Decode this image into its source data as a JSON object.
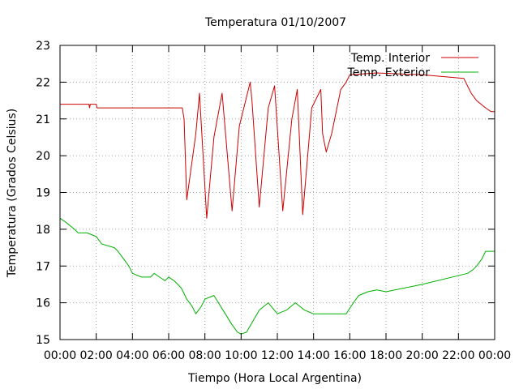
{
  "chart_data": {
    "type": "line",
    "title": "Temperatura 01/10/2007",
    "xlabel": "Tiempo (Hora Local Argentina)",
    "ylabel": "Temperatura (Grados Celsius)",
    "xlim": [
      0,
      24
    ],
    "ylim": [
      15,
      23
    ],
    "x_ticks": [
      0,
      2,
      4,
      6,
      8,
      10,
      12,
      14,
      16,
      18,
      20,
      22,
      24
    ],
    "x_tick_labels": [
      "00:00",
      "02:00",
      "04:00",
      "06:00",
      "08:00",
      "10:00",
      "12:00",
      "14:00",
      "16:00",
      "18:00",
      "20:00",
      "22:00",
      "00:00"
    ],
    "y_ticks": [
      15,
      16,
      17,
      18,
      19,
      20,
      21,
      22,
      23
    ],
    "y_tick_labels": [
      "15",
      "16",
      "17",
      "18",
      "19",
      "20",
      "21",
      "22",
      "23"
    ],
    "grid": true,
    "legend_position": "top-right",
    "series": [
      {
        "name": "Temp. Interior",
        "color": "#cc0000",
        "x": [
          0,
          1.6,
          1.63,
          1.67,
          1.7,
          2.0,
          2.05,
          6.75,
          6.85,
          7.0,
          7.5,
          7.7,
          8.1,
          8.5,
          8.95,
          9.5,
          9.9,
          10.5,
          10.6,
          11.0,
          11.5,
          11.85,
          12.3,
          12.8,
          13.1,
          13.4,
          13.9,
          14.4,
          14.5,
          14.7,
          15.0,
          15.5,
          15.8,
          16.0,
          17.5,
          20.0,
          22.3,
          22.7,
          23.0,
          23.5,
          23.8,
          24.0
        ],
        "y": [
          21.4,
          21.4,
          21.3,
          21.4,
          21.4,
          21.4,
          21.3,
          21.3,
          21.0,
          18.8,
          20.6,
          21.7,
          18.3,
          20.5,
          21.7,
          18.5,
          20.8,
          22.0,
          21.5,
          18.6,
          21.3,
          21.9,
          18.5,
          21.0,
          21.8,
          18.4,
          21.3,
          21.8,
          20.6,
          20.1,
          20.6,
          21.8,
          22.0,
          22.2,
          22.25,
          22.2,
          22.1,
          21.7,
          21.5,
          21.3,
          21.2,
          21.2
        ]
      },
      {
        "name": "Temp. Exterior",
        "color": "#00b000",
        "x": [
          0,
          0.3,
          0.8,
          1.0,
          1.5,
          2.0,
          2.3,
          3.0,
          3.2,
          3.5,
          3.8,
          4.0,
          4.5,
          5.0,
          5.2,
          5.5,
          5.8,
          6.0,
          6.3,
          6.5,
          6.7,
          7.0,
          7.3,
          7.5,
          7.8,
          8.0,
          8.5,
          9.0,
          9.5,
          9.8,
          10.0,
          10.3,
          11.0,
          11.5,
          12.0,
          12.5,
          13.0,
          13.5,
          14.0,
          15.0,
          15.8,
          16.2,
          16.5,
          17.0,
          17.5,
          18.0,
          20.0,
          22.5,
          22.8,
          23.0,
          23.3,
          23.5,
          24.0
        ],
        "y": [
          18.3,
          18.2,
          18.0,
          17.9,
          17.9,
          17.8,
          17.6,
          17.5,
          17.4,
          17.2,
          17.0,
          16.8,
          16.7,
          16.7,
          16.8,
          16.7,
          16.6,
          16.7,
          16.6,
          16.5,
          16.4,
          16.1,
          15.9,
          15.7,
          15.9,
          16.1,
          16.2,
          15.8,
          15.4,
          15.2,
          15.15,
          15.2,
          15.8,
          16.0,
          15.7,
          15.8,
          16.0,
          15.8,
          15.7,
          15.7,
          15.7,
          16.0,
          16.2,
          16.3,
          16.35,
          16.3,
          16.5,
          16.8,
          16.9,
          17.0,
          17.2,
          17.4,
          17.4
        ]
      }
    ]
  }
}
